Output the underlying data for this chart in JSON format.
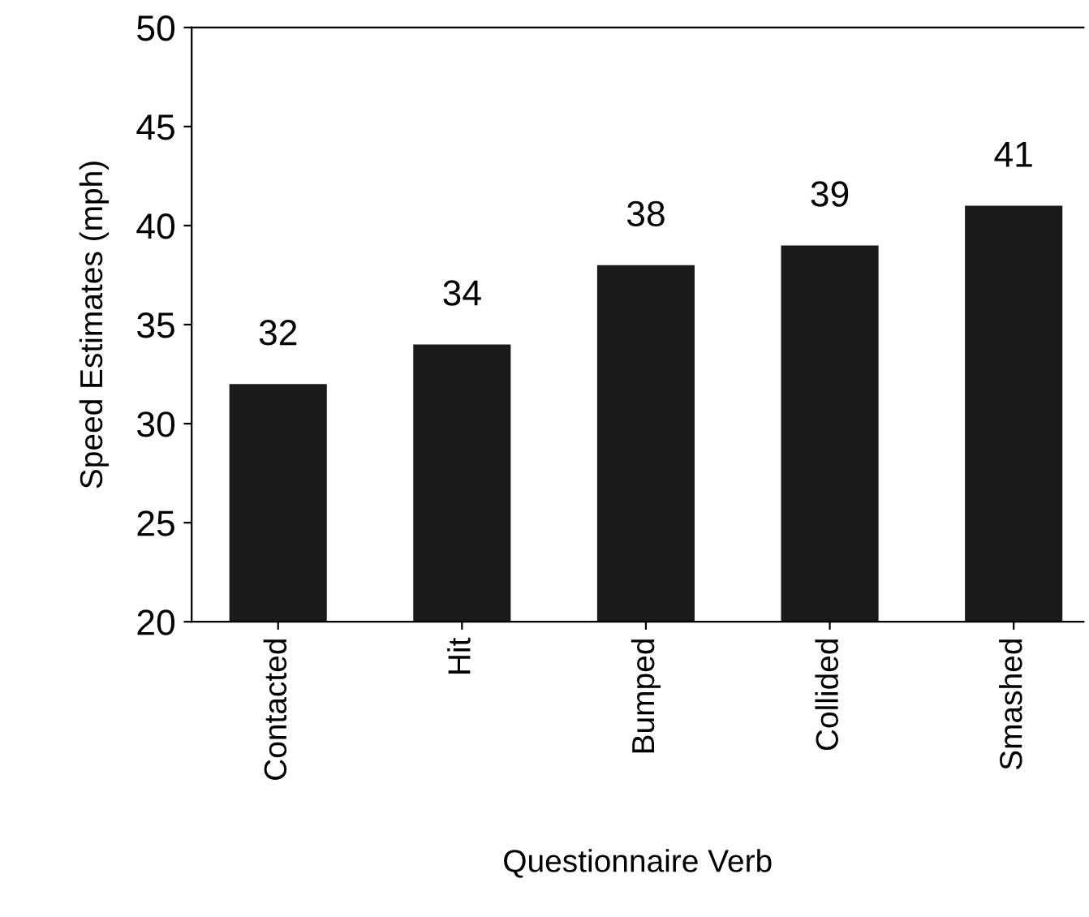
{
  "chart_data": {
    "type": "bar",
    "xlabel": "Questionnaire Verb",
    "ylabel": "Speed Estimates (mph)",
    "categories": [
      "Contacted",
      "Hit",
      "Bumped",
      "Collided",
      "Smashed"
    ],
    "values": [
      32,
      34,
      38,
      39,
      41
    ],
    "color": "#1a1a1a",
    "ylim": [
      20,
      50
    ],
    "yticks": [
      20,
      25,
      30,
      35,
      40,
      45,
      50
    ],
    "grid": false,
    "data_labels": true
  }
}
